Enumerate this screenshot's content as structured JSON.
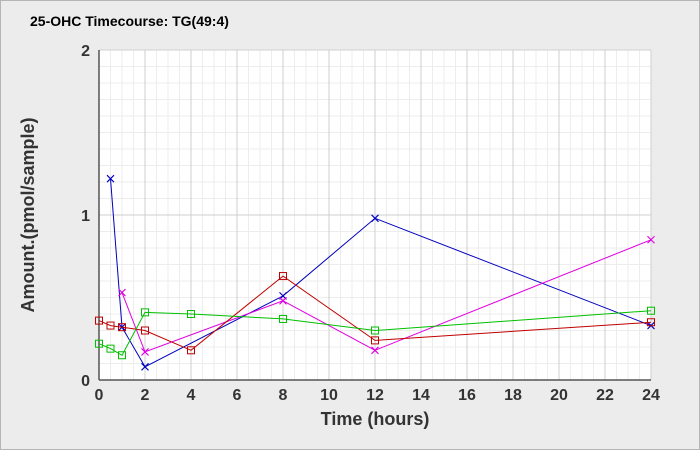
{
  "chart_data": {
    "type": "line",
    "title": "25-OHC Timecourse: TG(49:4)",
    "xlabel": "Time (hours)",
    "ylabel": "Amount.(pmol/sample)",
    "xlim": [
      0,
      24
    ],
    "ylim": [
      0,
      2
    ],
    "x_ticks": [
      0,
      2,
      4,
      6,
      8,
      10,
      12,
      14,
      16,
      18,
      20,
      22,
      24
    ],
    "x_tick_labels": [
      "0",
      "2",
      "4",
      "6",
      "8",
      "10",
      "12",
      "14",
      "16",
      "18",
      "20",
      "22",
      "24"
    ],
    "y_ticks": [
      0,
      1,
      2
    ],
    "y_tick_labels": [
      "0",
      "1",
      "2"
    ],
    "grid": true,
    "legend": "none",
    "series": [
      {
        "color": "#0000c0",
        "marker": "x",
        "points": [
          [
            0.5,
            1.22
          ],
          [
            1,
            0.32
          ],
          [
            2,
            0.08
          ],
          [
            8,
            0.51
          ],
          [
            12,
            0.98
          ],
          [
            24,
            0.33
          ]
        ]
      },
      {
        "color": "#e000e0",
        "marker": "x",
        "points": [
          [
            1,
            0.53
          ],
          [
            2,
            0.17
          ],
          [
            8,
            0.48
          ],
          [
            12,
            0.18
          ],
          [
            24,
            0.85
          ]
        ]
      },
      {
        "color": "#c00000",
        "marker": "square",
        "points": [
          [
            0,
            0.36
          ],
          [
            0.5,
            0.33
          ],
          [
            1,
            0.32
          ],
          [
            2,
            0.3
          ],
          [
            4,
            0.18
          ],
          [
            8,
            0.63
          ],
          [
            12,
            0.24
          ],
          [
            24,
            0.35
          ]
        ]
      },
      {
        "color": "#00c000",
        "marker": "square",
        "points": [
          [
            0,
            0.22
          ],
          [
            0.5,
            0.19
          ],
          [
            1,
            0.15
          ],
          [
            2,
            0.41
          ],
          [
            4,
            0.4
          ],
          [
            8,
            0.37
          ],
          [
            12,
            0.3
          ],
          [
            24,
            0.42
          ]
        ]
      }
    ]
  }
}
